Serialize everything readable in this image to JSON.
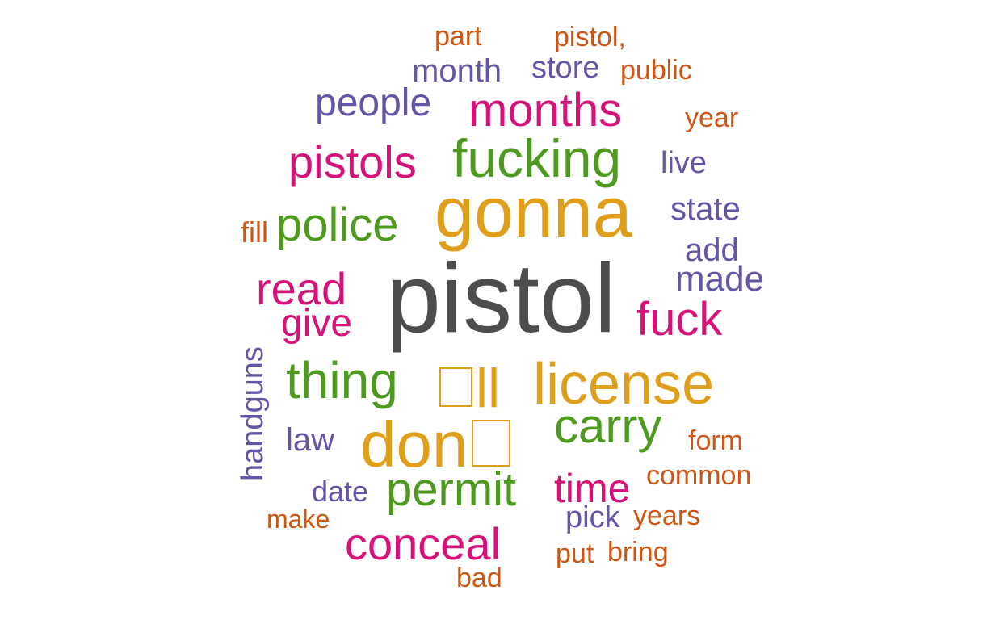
{
  "palette": {
    "gray": "#4d4d4d",
    "gold": "#e09f1a",
    "green": "#4d9a1f",
    "magenta": "#d6127a",
    "purple": "#6058a6",
    "orange": "#cf5512"
  },
  "words": [
    {
      "id": "pistol",
      "text": "pistol",
      "color": "gray"
    },
    {
      "id": "gonna",
      "text": "gonna",
      "color": "gold"
    },
    {
      "id": "ll",
      "text": "ll",
      "color": "gold",
      "prefix_glyph": true
    },
    {
      "id": "license",
      "text": "license",
      "color": "gold"
    },
    {
      "id": "don",
      "text": "don",
      "color": "gold",
      "suffix_glyph": true
    },
    {
      "id": "fucking",
      "text": "fucking",
      "color": "green"
    },
    {
      "id": "police",
      "text": "police",
      "color": "green"
    },
    {
      "id": "thing",
      "text": "thing",
      "color": "green"
    },
    {
      "id": "carry",
      "text": "carry",
      "color": "green"
    },
    {
      "id": "permit",
      "text": "permit",
      "color": "green"
    },
    {
      "id": "months",
      "text": "months",
      "color": "magenta"
    },
    {
      "id": "pistols",
      "text": "pistols",
      "color": "magenta"
    },
    {
      "id": "read",
      "text": "read",
      "color": "magenta"
    },
    {
      "id": "give",
      "text": "give",
      "color": "magenta"
    },
    {
      "id": "fuck",
      "text": "fuck",
      "color": "magenta"
    },
    {
      "id": "time",
      "text": "time",
      "color": "magenta"
    },
    {
      "id": "conceal",
      "text": "conceal",
      "color": "magenta"
    },
    {
      "id": "people",
      "text": "people",
      "color": "purple"
    },
    {
      "id": "month",
      "text": "month",
      "color": "purple"
    },
    {
      "id": "store",
      "text": "store",
      "color": "purple"
    },
    {
      "id": "live",
      "text": "live",
      "color": "purple"
    },
    {
      "id": "state",
      "text": "state",
      "color": "purple"
    },
    {
      "id": "add",
      "text": "add",
      "color": "purple"
    },
    {
      "id": "made",
      "text": "made",
      "color": "purple"
    },
    {
      "id": "handguns",
      "text": "handguns",
      "color": "purple"
    },
    {
      "id": "law",
      "text": "law",
      "color": "purple"
    },
    {
      "id": "date",
      "text": "date",
      "color": "purple"
    },
    {
      "id": "pick",
      "text": "pick",
      "color": "purple"
    },
    {
      "id": "part",
      "text": "part",
      "color": "orange"
    },
    {
      "id": "pistol-comma",
      "text": "pistol,",
      "color": "orange"
    },
    {
      "id": "public",
      "text": "public",
      "color": "orange"
    },
    {
      "id": "year",
      "text": "year",
      "color": "orange"
    },
    {
      "id": "fill",
      "text": "fill",
      "color": "orange"
    },
    {
      "id": "form",
      "text": "form",
      "color": "orange"
    },
    {
      "id": "common",
      "text": "common",
      "color": "orange"
    },
    {
      "id": "make",
      "text": "make",
      "color": "orange"
    },
    {
      "id": "years",
      "text": "years",
      "color": "orange"
    },
    {
      "id": "put",
      "text": "put",
      "color": "orange"
    },
    {
      "id": "bring",
      "text": "bring",
      "color": "orange"
    },
    {
      "id": "bad",
      "text": "bad",
      "color": "orange"
    }
  ]
}
